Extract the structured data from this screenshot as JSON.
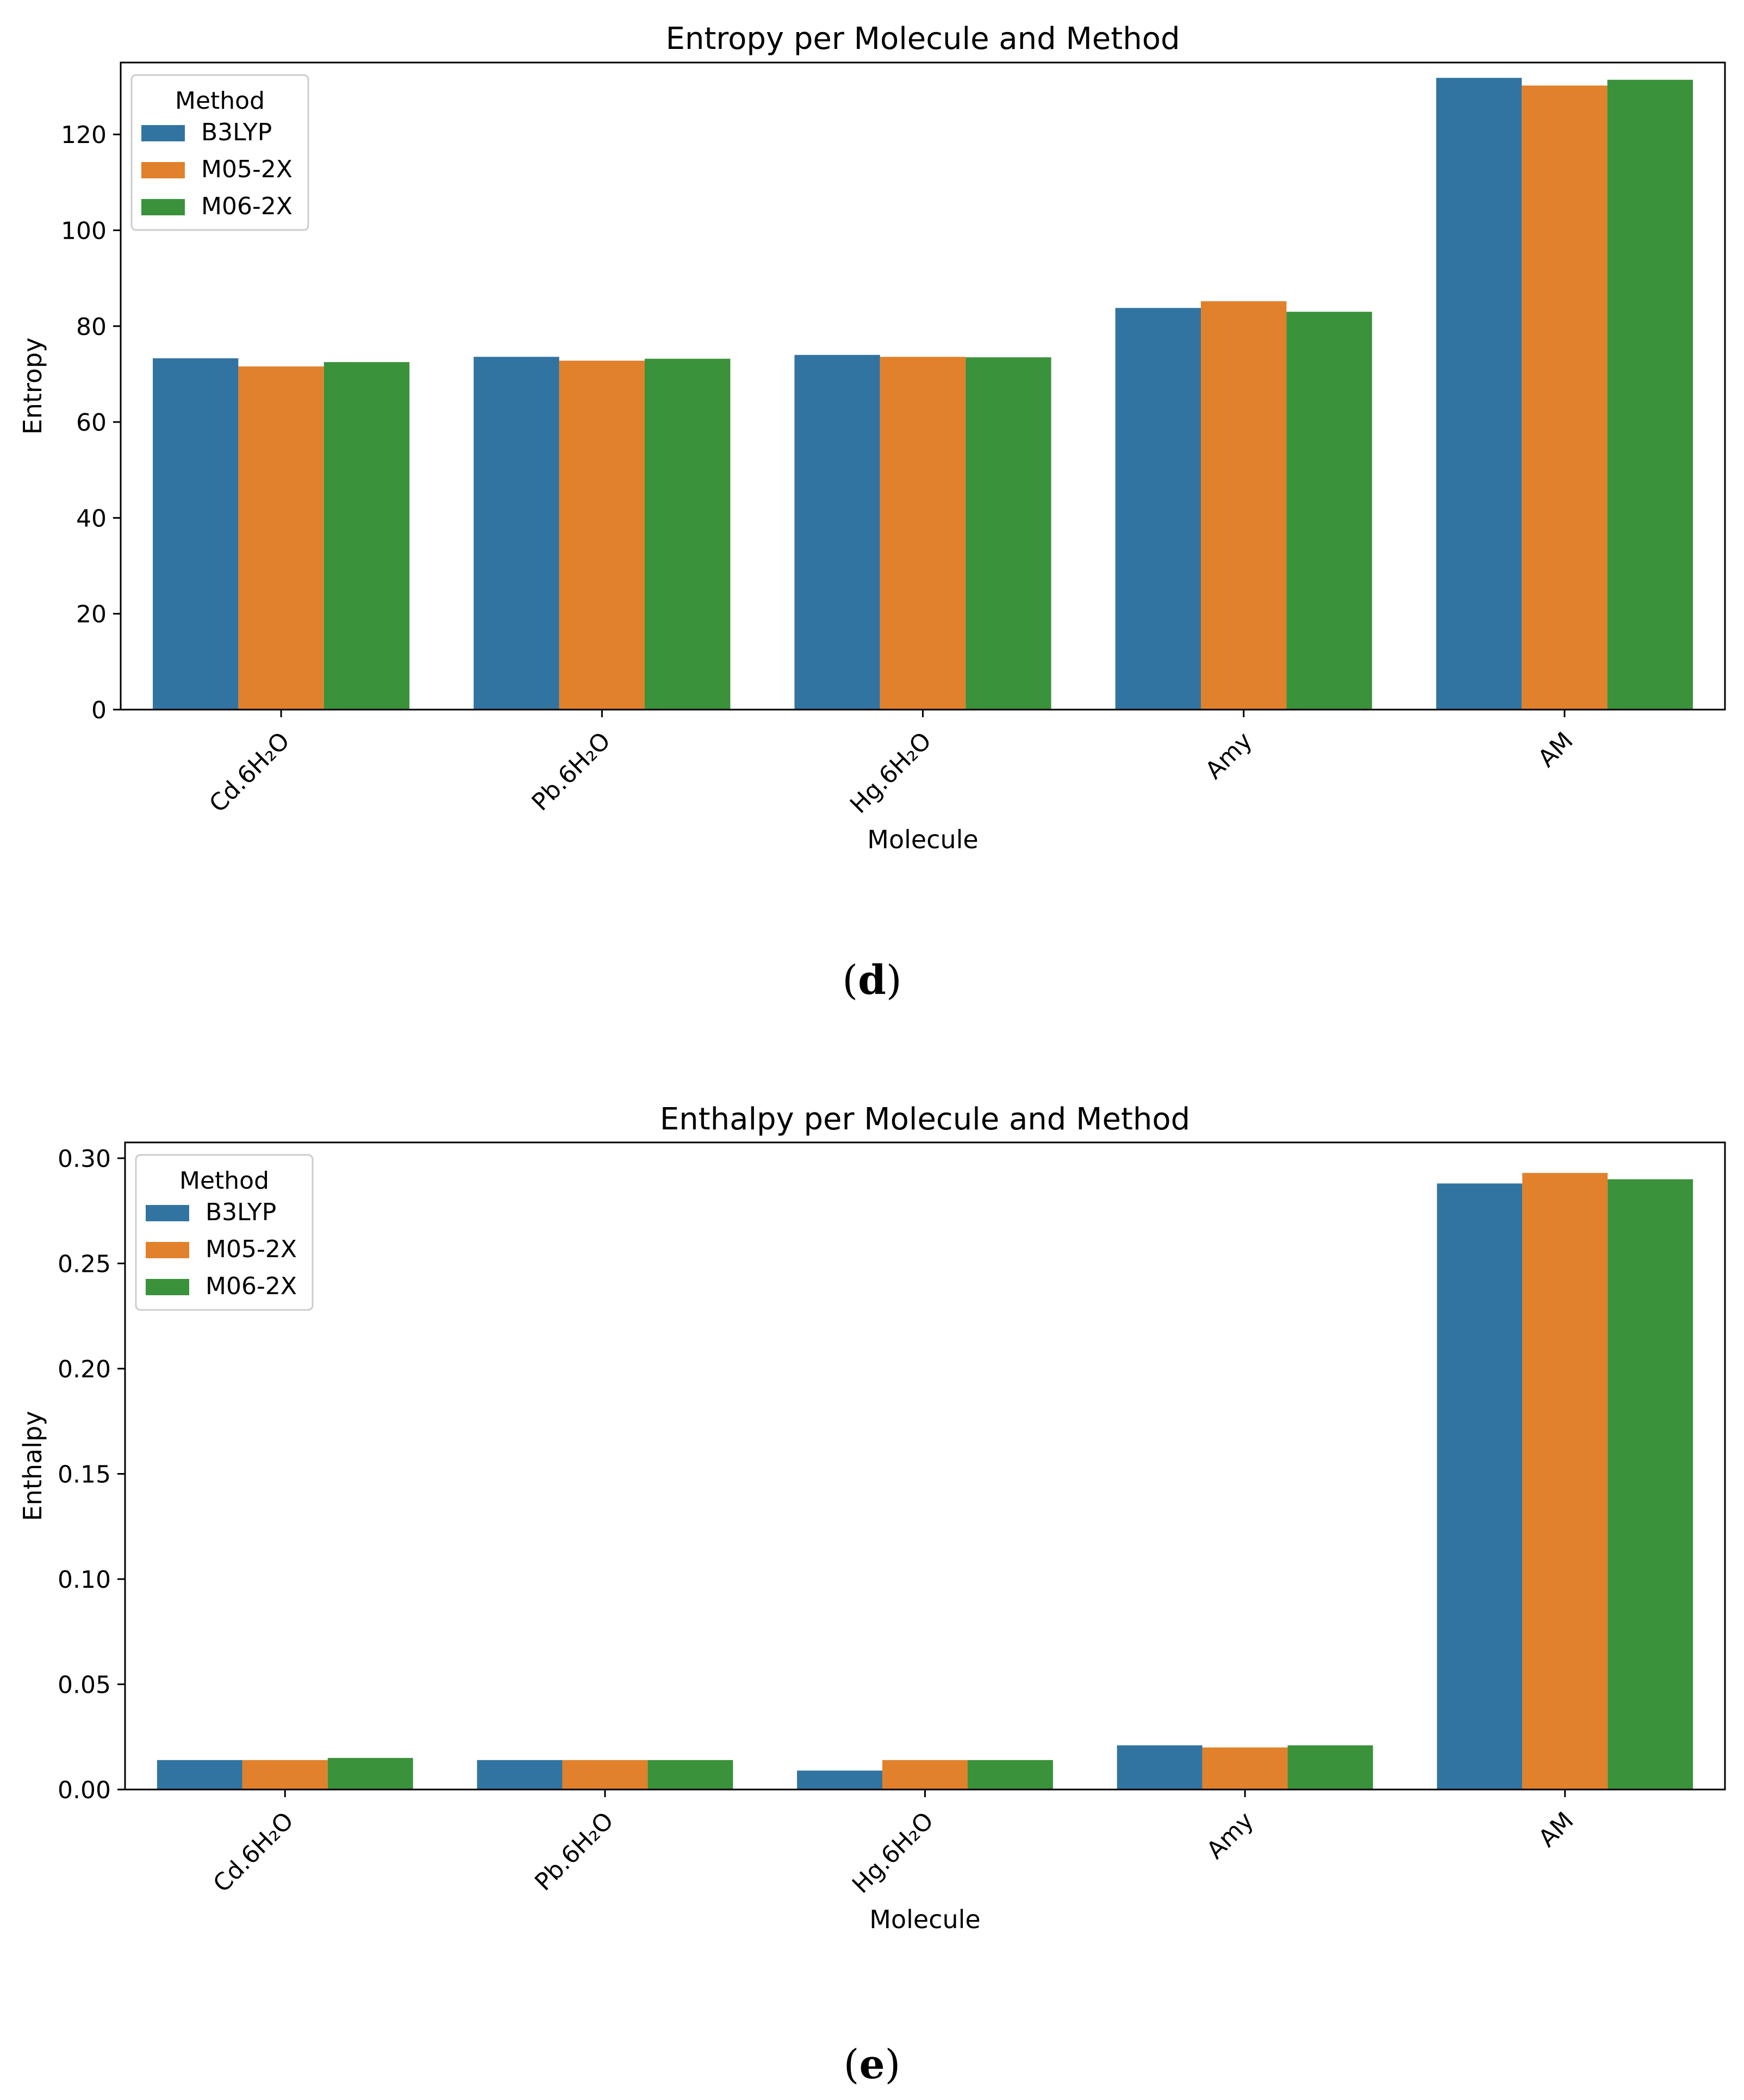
{
  "chart_data": [
    {
      "type": "bar",
      "title": "Entropy per Molecule and Method",
      "xlabel": "Molecule",
      "ylabel": "Entropy",
      "categories": [
        "Cd.6H₂O",
        "Pb.6H₂O",
        "Hg.6H₂O",
        "Amy",
        "AM"
      ],
      "series": [
        {
          "name": "B3LYP",
          "color": "#3274a1",
          "values": [
            73.3,
            73.6,
            74.0,
            83.8,
            131.8
          ]
        },
        {
          "name": "M05-2X",
          "color": "#e1812c",
          "values": [
            71.6,
            72.8,
            73.6,
            85.2,
            130.2
          ]
        },
        {
          "name": "M06-2X",
          "color": "#3a923a",
          "values": [
            72.5,
            73.2,
            73.5,
            83.0,
            131.4
          ]
        }
      ],
      "ylim": [
        0,
        135
      ],
      "yticks": [
        0,
        20,
        40,
        60,
        80,
        100,
        120
      ],
      "legend": {
        "title": "Method",
        "placement": "top-left"
      },
      "grid": false,
      "panel_label": "d"
    },
    {
      "type": "bar",
      "title": "Enthalpy per Molecule and Method",
      "xlabel": "Molecule",
      "ylabel": "Enthalpy",
      "categories": [
        "Cd.6H₂O",
        "Pb.6H₂O",
        "Hg.6H₂O",
        "Amy",
        "AM"
      ],
      "series": [
        {
          "name": "B3LYP",
          "color": "#3274a1",
          "values": [
            0.014,
            0.014,
            0.009,
            0.021,
            0.288
          ]
        },
        {
          "name": "M05-2X",
          "color": "#e1812c",
          "values": [
            0.014,
            0.014,
            0.014,
            0.02,
            0.293
          ]
        },
        {
          "name": "M06-2X",
          "color": "#3a923a",
          "values": [
            0.015,
            0.014,
            0.014,
            0.021,
            0.29
          ]
        }
      ],
      "ylim": [
        0,
        0.3075
      ],
      "yticks": [
        "0.00",
        "0.05",
        "0.10",
        "0.15",
        "0.20",
        "0.25",
        "0.30"
      ],
      "legend": {
        "title": "Method",
        "placement": "top-left"
      },
      "grid": false,
      "panel_label": "e"
    }
  ]
}
